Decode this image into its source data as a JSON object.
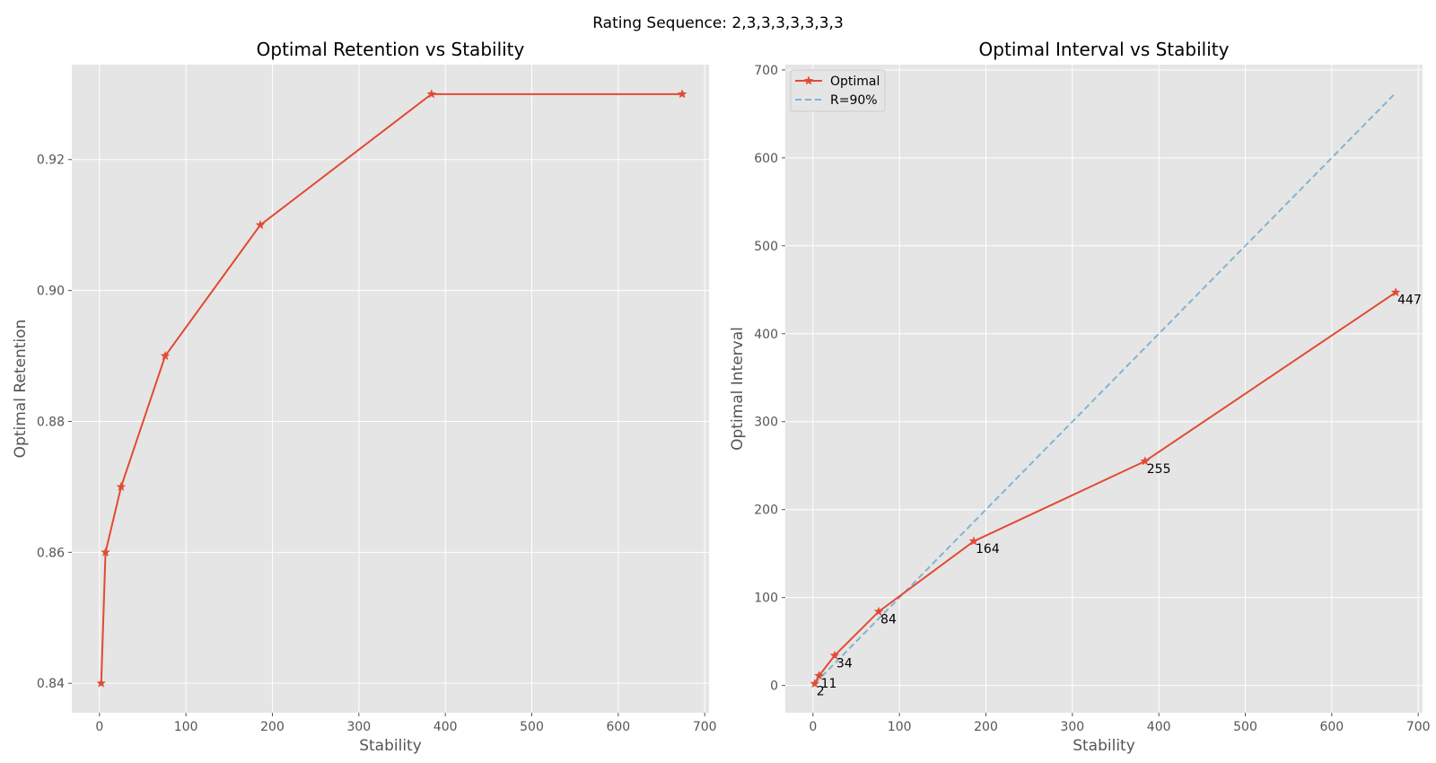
{
  "figure": {
    "suptitle": "Rating Sequence: 2,3,3,3,3,3,3,3"
  },
  "colors": {
    "background": "#e5e5e5",
    "grid": "#ffffff",
    "optimal": "#e24a33",
    "reference": "#348abd",
    "tick": "#555555"
  },
  "chart_data": [
    {
      "type": "line",
      "title": "Optimal Retention vs Stability",
      "xlabel": "Stability",
      "ylabel": "Optimal Retention",
      "xlim": [
        -32,
        705
      ],
      "ylim": [
        0.8355,
        0.9345
      ],
      "xticks": [
        0,
        100,
        200,
        300,
        400,
        500,
        600,
        700
      ],
      "xtick_labels": [
        "0",
        "100",
        "200",
        "300",
        "400",
        "500",
        "600",
        "700"
      ],
      "yticks": [
        0.84,
        0.86,
        0.88,
        0.9,
        0.92
      ],
      "ytick_labels": [
        "0.84",
        "0.86",
        "0.88",
        "0.90",
        "0.92"
      ],
      "grid": true,
      "series": [
        {
          "marker": "star",
          "color": "#e24a33",
          "x": [
            2,
            7,
            25,
            76,
            186,
            384,
            674
          ],
          "y": [
            0.84,
            0.86,
            0.87,
            0.89,
            0.91,
            0.93,
            0.93
          ]
        }
      ]
    },
    {
      "type": "line",
      "title": "Optimal Interval vs Stability",
      "xlabel": "Stability",
      "ylabel": "Optimal Interval",
      "xlim": [
        -32,
        705
      ],
      "ylim": [
        -31,
        706
      ],
      "xticks": [
        0,
        100,
        200,
        300,
        400,
        500,
        600,
        700
      ],
      "xtick_labels": [
        "0",
        "100",
        "200",
        "300",
        "400",
        "500",
        "600",
        "700"
      ],
      "yticks": [
        0,
        100,
        200,
        300,
        400,
        500,
        600,
        700
      ],
      "ytick_labels": [
        "0",
        "100",
        "200",
        "300",
        "400",
        "500",
        "600",
        "700"
      ],
      "grid": true,
      "legend": "top-left",
      "series": [
        {
          "name": "Optimal",
          "marker": "star",
          "color": "#e24a33",
          "x": [
            2,
            7,
            25,
            76,
            186,
            384,
            674
          ],
          "y": [
            2,
            11,
            34,
            84,
            164,
            255,
            447
          ],
          "labels": [
            "2",
            "11",
            "34",
            "84",
            "164",
            "255",
            "447"
          ]
        },
        {
          "name": "R=90%",
          "style": "dashed",
          "color": "#348abd",
          "x": [
            2,
            7,
            25,
            76,
            186,
            384,
            674
          ],
          "y": [
            2,
            7,
            25,
            76,
            186,
            384,
            674
          ]
        }
      ]
    }
  ]
}
